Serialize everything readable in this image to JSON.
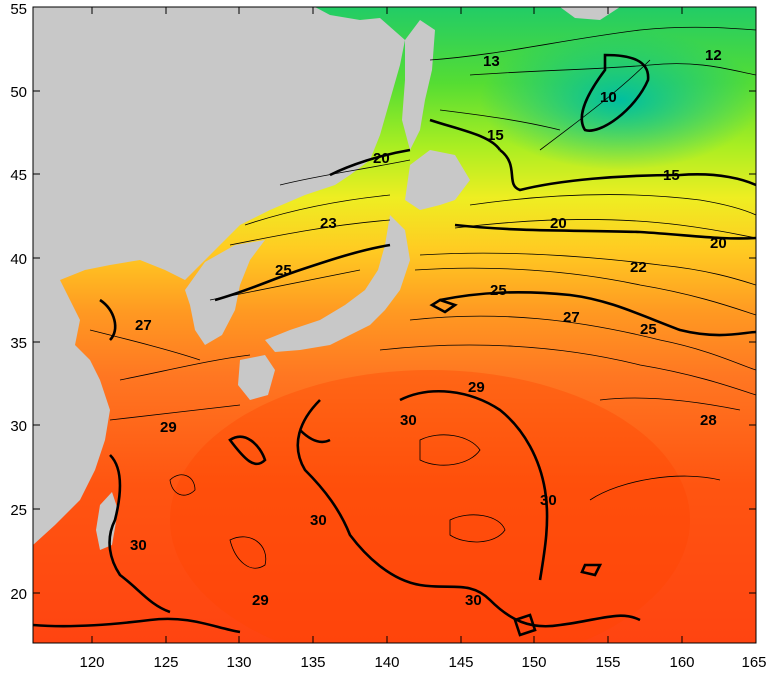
{
  "map": {
    "lon_range": [
      116,
      165
    ],
    "lat_range": [
      17,
      55
    ],
    "x_ticks": [
      "120",
      "125",
      "130",
      "135",
      "140",
      "145",
      "150",
      "155",
      "160",
      "165"
    ],
    "y_ticks": [
      "55",
      "50",
      "45",
      "40",
      "35",
      "30",
      "25",
      "20"
    ],
    "land_color": "#c8c8c8",
    "contour_labels": [
      "13",
      "12",
      "10",
      "15",
      "15",
      "20",
      "20",
      "20",
      "23",
      "22",
      "25",
      "25",
      "25",
      "27",
      "27",
      "29",
      "29",
      "28",
      "30",
      "30",
      "30",
      "30",
      "30",
      "29"
    ]
  }
}
